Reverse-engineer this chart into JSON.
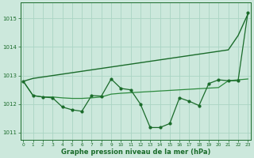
{
  "x": [
    0,
    1,
    2,
    3,
    4,
    5,
    6,
    7,
    8,
    9,
    10,
    11,
    12,
    13,
    14,
    15,
    16,
    17,
    18,
    19,
    20,
    21,
    22,
    23
  ],
  "line_smooth": [
    1012.8,
    1012.9,
    1012.95,
    1013.0,
    1013.05,
    1013.1,
    1013.15,
    1013.2,
    1013.25,
    1013.3,
    1013.35,
    1013.4,
    1013.45,
    1013.5,
    1013.55,
    1013.6,
    1013.65,
    1013.7,
    1013.75,
    1013.8,
    1013.85,
    1013.9,
    1014.4,
    1015.15
  ],
  "line_mid": [
    1012.8,
    1012.3,
    1012.25,
    1012.25,
    1012.22,
    1012.2,
    1012.2,
    1012.22,
    1012.25,
    1012.35,
    1012.38,
    1012.4,
    1012.42,
    1012.44,
    1012.46,
    1012.48,
    1012.5,
    1012.52,
    1012.54,
    1012.56,
    1012.58,
    1012.82,
    1012.85,
    1012.88
  ],
  "line_fluct": [
    1012.8,
    1012.3,
    1012.25,
    1012.22,
    1011.9,
    1011.8,
    1011.75,
    1012.3,
    1012.28,
    1012.88,
    1012.55,
    1012.5,
    1012.0,
    1011.18,
    1011.18,
    1011.32,
    1012.22,
    1012.1,
    1011.95,
    1012.72,
    1012.85,
    1012.82,
    1012.82,
    1015.2
  ],
  "ylabel_ticks": [
    1011,
    1012,
    1013,
    1014,
    1015
  ],
  "xlabel": "Graphe pression niveau de la mer (hPa)",
  "bg_color": "#cce8dc",
  "grid_color": "#aad4c4",
  "line_color_dark": "#1a6b2a",
  "line_color_mid": "#2d8a3e",
  "line_color_light": "#3aaa50",
  "ylim": [
    1010.75,
    1015.55
  ],
  "xlim": [
    -0.3,
    23.3
  ]
}
